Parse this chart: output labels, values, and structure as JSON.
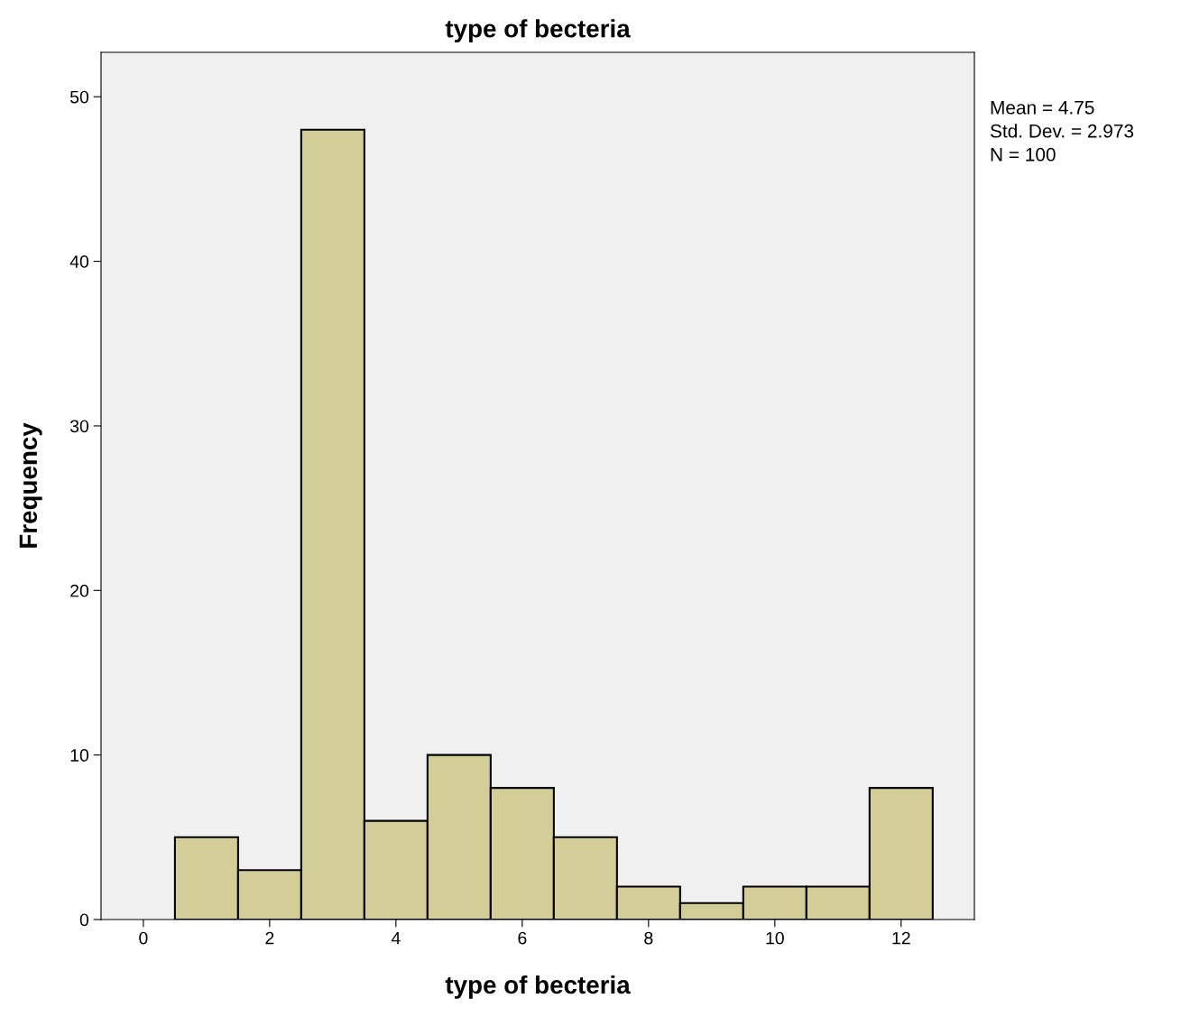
{
  "chart_data": {
    "type": "histogram",
    "title": "type of becteria",
    "xlabel": "type of becteria",
    "ylabel": "Frequency",
    "bins": [
      0.5,
      1.5,
      2.5,
      3.5,
      4.5,
      5.5,
      6.5,
      7.5,
      8.5,
      9.5,
      10.5,
      11.5,
      12.5
    ],
    "values": [
      5,
      3,
      48,
      6,
      10,
      8,
      5,
      2,
      1,
      2,
      2,
      8
    ],
    "color": "#d3ce98",
    "xlim": [
      -0.67,
      13.16
    ],
    "xticks": [
      0,
      2,
      4,
      6,
      8,
      10,
      12
    ],
    "ylim": [
      0,
      52.7
    ],
    "yticks": [
      0,
      10,
      20,
      30,
      40,
      50
    ],
    "grid": false,
    "annotations": [
      "Mean = 4.75",
      "Std. Dev. = 2.973",
      "N = 100"
    ]
  }
}
